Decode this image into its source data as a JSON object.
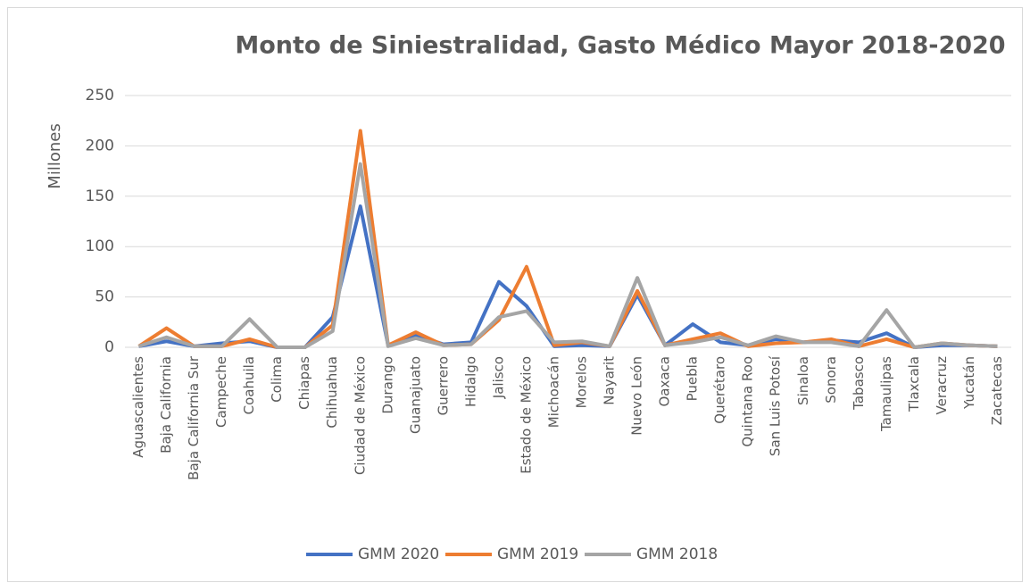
{
  "chart_data": {
    "type": "line",
    "title": "Monto de Siniestralidad, Gasto Médico Mayor 2018-2020",
    "y_label": "Millones",
    "categories": [
      "Aguascalientes",
      "Baja California",
      "Baja California Sur",
      "Campeche",
      "Coahuila",
      "Colima",
      "Chiapas",
      "Chihuahua",
      "Ciudad de México",
      "Durango",
      "Guanajuato",
      "Guerrero",
      "Hidalgo",
      "Jalisco",
      "Estado de México",
      "Michoacán",
      "Morelos",
      "Nayarit",
      "Nuevo León",
      "Oaxaca",
      "Puebla",
      "Querétaro",
      "Quintana Roo",
      "San Luis Potosí",
      "Sinaloa",
      "Sonora",
      "Tabasco",
      "Tamaulipas",
      "Tlaxcala",
      "Veracruz",
      "Yucatán",
      "Zacatecas"
    ],
    "series": [
      {
        "name": "GMM 2020",
        "color": "#4472c4",
        "values": [
          1,
          6,
          1,
          4,
          6,
          0,
          0,
          30,
          140,
          2,
          12,
          3,
          5,
          65,
          41,
          1,
          2,
          1,
          52,
          2,
          23,
          5,
          2,
          8,
          5,
          7,
          5,
          14,
          0,
          2,
          2,
          1
        ]
      },
      {
        "name": "GMM 2019",
        "color": "#ed7d31",
        "values": [
          1,
          19,
          1,
          1,
          8,
          0,
          0,
          22,
          215,
          2,
          15,
          2,
          3,
          27,
          80,
          2,
          5,
          1,
          56,
          2,
          8,
          14,
          1,
          4,
          5,
          8,
          1,
          8,
          0,
          4,
          2,
          1
        ]
      },
      {
        "name": "GMM 2018",
        "color": "#a5a5a5",
        "values": [
          1,
          10,
          1,
          1,
          28,
          0,
          0,
          16,
          182,
          1,
          9,
          2,
          3,
          30,
          36,
          5,
          6,
          1,
          69,
          2,
          5,
          10,
          2,
          11,
          5,
          5,
          1,
          37,
          0,
          4,
          2,
          1
        ]
      }
    ],
    "ylim": [
      0,
      250
    ],
    "yticks": [
      0,
      50,
      100,
      150,
      200,
      250
    ],
    "grid": true,
    "legend": "bottom"
  }
}
